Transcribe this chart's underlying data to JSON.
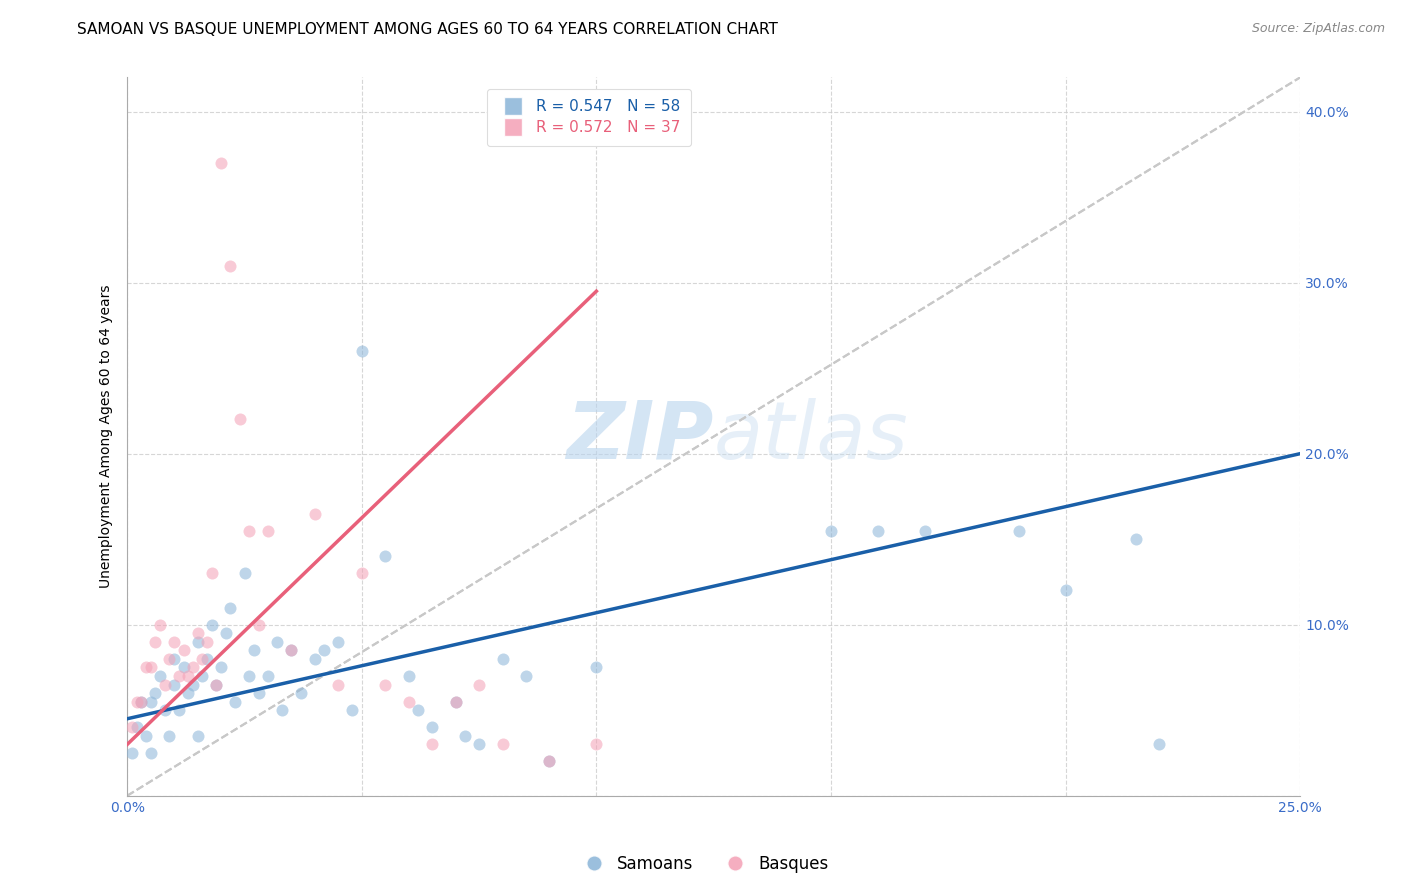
{
  "title": "SAMOAN VS BASQUE UNEMPLOYMENT AMONG AGES 60 TO 64 YEARS CORRELATION CHART",
  "source": "Source: ZipAtlas.com",
  "ylabel": "Unemployment Among Ages 60 to 64 years",
  "xlim": [
    0.0,
    0.25
  ],
  "ylim": [
    0.0,
    0.42
  ],
  "xticks": [
    0.0,
    0.05,
    0.1,
    0.15,
    0.2,
    0.25
  ],
  "yticks": [
    0.0,
    0.1,
    0.2,
    0.3,
    0.4
  ],
  "watermark_zip": "ZIP",
  "watermark_atlas": "atlas",
  "samoans_color": "#8ab4d8",
  "basques_color": "#f4a0b5",
  "samoan_line_color": "#1a5fa8",
  "basque_line_color": "#e8607a",
  "diagonal_color": "#c8c8c8",
  "legend_r_samoan": "R = 0.547",
  "legend_n_samoan": "N = 58",
  "legend_r_basque": "R = 0.572",
  "legend_n_basque": "N = 37",
  "legend_label_samoan": "Samoans",
  "legend_label_basque": "Basques",
  "samoan_line_x0": 0.0,
  "samoan_line_y0": 0.045,
  "samoan_line_x1": 0.25,
  "samoan_line_y1": 0.2,
  "basque_line_x0": 0.0,
  "basque_line_y0": 0.03,
  "basque_line_x1": 0.1,
  "basque_line_y1": 0.295,
  "samoans_x": [
    0.001,
    0.002,
    0.003,
    0.004,
    0.005,
    0.005,
    0.006,
    0.007,
    0.008,
    0.009,
    0.01,
    0.01,
    0.011,
    0.012,
    0.013,
    0.014,
    0.015,
    0.015,
    0.016,
    0.017,
    0.018,
    0.019,
    0.02,
    0.021,
    0.022,
    0.023,
    0.025,
    0.026,
    0.027,
    0.028,
    0.03,
    0.032,
    0.033,
    0.035,
    0.037,
    0.04,
    0.042,
    0.045,
    0.048,
    0.05,
    0.055,
    0.06,
    0.062,
    0.065,
    0.07,
    0.072,
    0.075,
    0.08,
    0.085,
    0.09,
    0.1,
    0.15,
    0.16,
    0.17,
    0.19,
    0.2,
    0.215,
    0.22
  ],
  "samoans_y": [
    0.025,
    0.04,
    0.055,
    0.035,
    0.055,
    0.025,
    0.06,
    0.07,
    0.05,
    0.035,
    0.065,
    0.08,
    0.05,
    0.075,
    0.06,
    0.065,
    0.09,
    0.035,
    0.07,
    0.08,
    0.1,
    0.065,
    0.075,
    0.095,
    0.11,
    0.055,
    0.13,
    0.07,
    0.085,
    0.06,
    0.07,
    0.09,
    0.05,
    0.085,
    0.06,
    0.08,
    0.085,
    0.09,
    0.05,
    0.26,
    0.14,
    0.07,
    0.05,
    0.04,
    0.055,
    0.035,
    0.03,
    0.08,
    0.07,
    0.02,
    0.075,
    0.155,
    0.155,
    0.155,
    0.155,
    0.12,
    0.15,
    0.03
  ],
  "basques_x": [
    0.001,
    0.002,
    0.003,
    0.004,
    0.005,
    0.006,
    0.007,
    0.008,
    0.009,
    0.01,
    0.011,
    0.012,
    0.013,
    0.014,
    0.015,
    0.016,
    0.017,
    0.018,
    0.019,
    0.02,
    0.022,
    0.024,
    0.026,
    0.028,
    0.03,
    0.035,
    0.04,
    0.045,
    0.05,
    0.055,
    0.06,
    0.065,
    0.07,
    0.075,
    0.08,
    0.09,
    0.1
  ],
  "basques_y": [
    0.04,
    0.055,
    0.055,
    0.075,
    0.075,
    0.09,
    0.1,
    0.065,
    0.08,
    0.09,
    0.07,
    0.085,
    0.07,
    0.075,
    0.095,
    0.08,
    0.09,
    0.13,
    0.065,
    0.37,
    0.31,
    0.22,
    0.155,
    0.1,
    0.155,
    0.085,
    0.165,
    0.065,
    0.13,
    0.065,
    0.055,
    0.03,
    0.055,
    0.065,
    0.03,
    0.02,
    0.03
  ],
  "title_fontsize": 11,
  "axis_label_fontsize": 10,
  "tick_fontsize": 10,
  "legend_fontsize": 11,
  "marker_size": 75,
  "marker_alpha": 0.55,
  "background_color": "#ffffff",
  "grid_color": "#cccccc",
  "grid_alpha": 0.8
}
